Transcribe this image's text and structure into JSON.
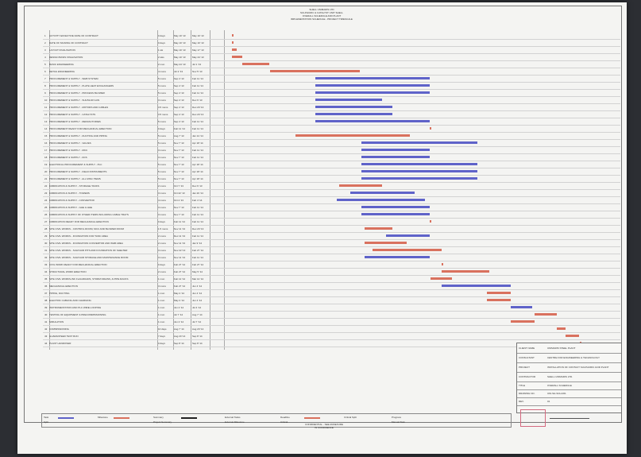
{
  "header": {
    "line1": "SHELL UNIMARIS LTD",
    "line2": "SULPHURIC & CATALYST UNIT SHELL",
    "line3": "OVERALL SCHEDULE AND PLANT",
    "line4": "IMPLEMENTATION SCHEDULE - PROJECT TIMESCALE"
  },
  "rows": [
    {
      "no": "1",
      "activity": "ACTIVITY EFFECTIVE DATE OF CONTRACT",
      "duration": "0 days",
      "start": "May 10 '13",
      "finish": "May 10 '13"
    },
    {
      "no": "2",
      "activity": "DATE OF SIGNING OF CONTRACT",
      "duration": "0 days",
      "start": "May 10 '13",
      "finish": "May 10 '13"
    },
    {
      "no": "3",
      "activity": "LAYOUT FINALISATION",
      "duration": "1 wk",
      "start": "May 10 '13",
      "finish": "May 17 '13"
    },
    {
      "no": "4",
      "activity": "DESIGN BASIS FINALISATION",
      "duration": "2 wks",
      "start": "May 10 '13",
      "finish": "May 24 '13"
    },
    {
      "no": "5",
      "activity": "BASIC ENGINEERING",
      "duration": "2 mon",
      "start": "May 24 '13",
      "finish": "Jul 1 '13"
    },
    {
      "no": "6",
      "activity": "DETAIL ENGINEERING",
      "duration": "4 mons",
      "start": "Jul 2 '13",
      "finish": "Nov 5 '13"
    },
    {
      "no": "7",
      "activity": "PROCUREMENT & SUPPLY - WHB SYSTEM",
      "duration": "5 mons",
      "start": "Sep 4 '13",
      "finish": "Feb 11 '14"
    },
    {
      "no": "8",
      "activity": "PROCUREMENT & SUPPLY - PLATE HEAT EXCHANGERS",
      "duration": "5 mons",
      "start": "Sep 4 '13",
      "finish": "Feb 11 '14"
    },
    {
      "no": "9",
      "activity": "PROCUREMENT & SUPPLY - PROCESS BLOWER",
      "duration": "5 mons",
      "start": "Sep 4 '13",
      "finish": "Feb 11 '14"
    },
    {
      "no": "10",
      "activity": "PROCUREMENT & SUPPLY - SULPHUR GUN",
      "duration": "3 mons",
      "start": "Sep 4 '13",
      "finish": "Dec 6 '13"
    },
    {
      "no": "11",
      "activity": "PROCUREMENT & SUPPLY - MOTORS AND CABLES",
      "duration": "3.5 mons",
      "start": "Sep 4 '13",
      "finish": "Dec 20 '13"
    },
    {
      "no": "12",
      "activity": "PROCUREMENT & SUPPLY - CATALYSTS",
      "duration": "3.5 mons",
      "start": "Sep 4 '13",
      "finish": "Dec 20 '13"
    },
    {
      "no": "13",
      "activity": "PROCUREMENT & SUPPLY - REFRACTORIES",
      "duration": "5 mons",
      "start": "Sep 4 '13",
      "finish": "Feb 11 '14"
    },
    {
      "no": "14",
      "activity": "PROCUREMENT READY FOR MECHANICAL ERECTION",
      "duration": "0 days",
      "start": "Feb 11 '14",
      "finish": "Feb 11 '14"
    },
    {
      "no": "15",
      "activity": "PROCUREMENT & SUPPLY - DUCTING AND PIPING",
      "duration": "5 mons",
      "start": "Aug 7 '13",
      "finish": "Jan 14 '14"
    },
    {
      "no": "16",
      "activity": "PROCUREMENT & SUPPLY - VALVES",
      "duration": "5 mons",
      "start": "Nov 7 '13",
      "finish": "Apr 18 '14"
    },
    {
      "no": "17",
      "activity": "PROCUREMENT & SUPPLY - MCC",
      "duration": "3 mons",
      "start": "Nov 7 '13",
      "finish": "Feb 11 '14"
    },
    {
      "no": "18",
      "activity": "PROCUREMENT & SUPPLY - DCS",
      "duration": "3 mons",
      "start": "Nov 7 '13",
      "finish": "Feb 11 '14"
    },
    {
      "no": "19",
      "activity": "ELECTRICAL PROCUREMENT & SUPPLY - PLC",
      "duration": "5 mons",
      "start": "Nov 7 '13",
      "finish": "Apr 18 '14"
    },
    {
      "no": "20",
      "activity": "PROCUREMENT & SUPPLY - FIELD INSTRUMENTS",
      "duration": "5 mons",
      "start": "Nov 7 '13",
      "finish": "Apr 18 '14"
    },
    {
      "no": "21",
      "activity": "PROCUREMENT & SUPPLY - ALL MISC ITEMS",
      "duration": "5 mons",
      "start": "Nov 7 '13",
      "finish": "Apr 18 '14"
    },
    {
      "no": "22",
      "activity": "FABRICATION & SUPPLY - STORAGE TANKS",
      "duration": "2 mons",
      "start": "Oct 7 '13",
      "finish": "Dec 6 '13"
    },
    {
      "no": "23",
      "activity": "FABRICATION & SUPPLY - TOWERS",
      "duration": "3 mons",
      "start": "Oct 22 '13",
      "finish": "Jan 20 '14"
    },
    {
      "no": "24",
      "activity": "FABRICATION & SUPPLY - CONVERTOR",
      "duration": "4 mons",
      "start": "Oct 4 '13",
      "finish": "Feb 4 '14"
    },
    {
      "no": "25",
      "activity": "FABRICATION & SUPPLY - GHE & HHE",
      "duration": "3 mons",
      "start": "Nov 7 '13",
      "finish": "Feb 11 '14"
    },
    {
      "no": "26",
      "activity": "FABRICATION & SUPPLY OF OTHER ITEMS INCLUDING CABLE TRAYS",
      "duration": "3 mons",
      "start": "Nov 7 '13",
      "finish": "Feb 11 '14"
    },
    {
      "no": "27",
      "activity": "FABRICATION READY FOR MECHANICAL ERECTION",
      "duration": "0 days",
      "start": "Feb 11 '14",
      "finish": "Feb 11 '14"
    },
    {
      "no": "28",
      "activity": "SITE CIVIL WORKS - CONTROL ROOM, MCC AND BLOWER ROOM",
      "duration": "1.5 mons",
      "start": "Nov 11 '13",
      "finish": "Dec 20 '13"
    },
    {
      "no": "29",
      "activity": "SITE CIVIL WORKS - FOUNDATION FOR TANK AREA",
      "duration": "2 mons",
      "start": "Dec 11 '13",
      "finish": "Feb 11 '14"
    },
    {
      "no": "30",
      "activity": "SITE CIVIL WORKS - FOUNDATION CONVERTOR AND WHB AREA",
      "duration": "2 mons",
      "start": "Nov 11 '13",
      "finish": "Jan 9 '14"
    },
    {
      "no": "31",
      "activity": "SITE CIVIL WORKS - SULPHUR PITS AND FOUNDATION OF SHELTER",
      "duration": "3 mons",
      "start": "Nov 22 '13",
      "finish": "Feb 27 '14"
    },
    {
      "no": "32",
      "activity": "SITE CIVIL WORKS - SULPHUR STORAGE AND MAINTENANCE ROOM",
      "duration": "3 mons",
      "start": "Nov 11 '13",
      "finish": "Feb 11 '14"
    },
    {
      "no": "33",
      "activity": "CIVIL WORK READY FOR MECHANICAL ERECTION",
      "duration": "0 days",
      "start": "Feb 27 '14",
      "finish": "Feb 27 '14"
    },
    {
      "no": "34",
      "activity": "STRUCTURAL WORK ERECTION",
      "duration": "2 mons",
      "start": "Feb 27 '14",
      "finish": "May 5 '14"
    },
    {
      "no": "35",
      "activity": "SITE CIVIL WORKS-INK FLAGROADS, STORM DRAINS, & PIPE RACKS",
      "duration": "1 mon",
      "start": "Feb 12 '14",
      "finish": "Mar 14 '14"
    },
    {
      "no": "36",
      "activity": "MECHANICAL ERECTION",
      "duration": "3 mons",
      "start": "Feb 27 '14",
      "finish": "Jun 4 '14"
    },
    {
      "no": "37",
      "activity": "PIPING, DUCTING",
      "duration": "1 mon",
      "start": "May 2 '14",
      "finish": "Jun 4 '14"
    },
    {
      "no": "38",
      "activity": "ELECTRIC CABLING AND CHARGING",
      "duration": "1 mon",
      "start": "May 2 '14",
      "finish": "Jun 4 '14"
    },
    {
      "no": "39",
      "activity": "INSTRUMENTATION AND PLC WIRE LOOPING",
      "duration": "1 mon",
      "start": "Jun 4 '14",
      "finish": "Jul 4 '14"
    },
    {
      "no": "40",
      "activity": "TESTING OF EQUIPMENT & PRECOMMISSIONING",
      "duration": "1 mon",
      "start": "Jul 7 '14",
      "finish": "Aug 7 '14"
    },
    {
      "no": "41",
      "activity": "SIMULATION",
      "duration": "1 mon",
      "start": "Jun 4 '14",
      "finish": "Jul 7 '14"
    },
    {
      "no": "42",
      "activity": "COMMISSIONING",
      "duration": "10 days",
      "start": "Aug 7 '14",
      "finish": "Aug 20 '14"
    },
    {
      "no": "43",
      "activity": "GUARANTEED TEST RUN",
      "duration": "7 days",
      "start": "Aug 20 '14",
      "finish": "Sep 8 '14"
    },
    {
      "no": "44",
      "activity": "PLANT HANDOVER",
      "duration": "0 days",
      "start": "Sep 8 '14",
      "finish": "Sep 8 '14"
    }
  ],
  "legend": {
    "items": [
      "Task",
      "Split",
      "Milestone",
      "Summary",
      "Project Summary",
      "External Tasks",
      "External Milestone",
      "Deadline",
      "Critical",
      "Critical Split",
      "Progress",
      "Manual Task"
    ]
  },
  "footer": {
    "line1": "CONFIDENTIAL - SEE ANNEXURE",
    "line2": "IN CONFIDENCE"
  },
  "title_block": {
    "rows": [
      {
        "label": "CLIENT NAME",
        "value": "UNIMARIS STEEL PLANT"
      },
      {
        "label": "CONSULTANT",
        "value": "CENTRE FOR ENGINEERING & TECHNOLOGY"
      },
      {
        "label": "PROJECT",
        "value": "INSTALLATION OF CONTACT SULPHURIC ACID PLANT"
      },
      {
        "label": "CONTRACTOR",
        "value": "SHELL UNIMARIS LTD."
      },
      {
        "label": "TITLE",
        "value": "OVERALL SCHEDULE"
      },
      {
        "label": "DRAWING NO.",
        "value": "UNI-SH-SCH-001"
      },
      {
        "label": "REV.",
        "value": "01"
      }
    ]
  },
  "colors": {
    "critical": "#d9715e",
    "task": "#5f63c9",
    "sheet": "#f4f4f2"
  }
}
